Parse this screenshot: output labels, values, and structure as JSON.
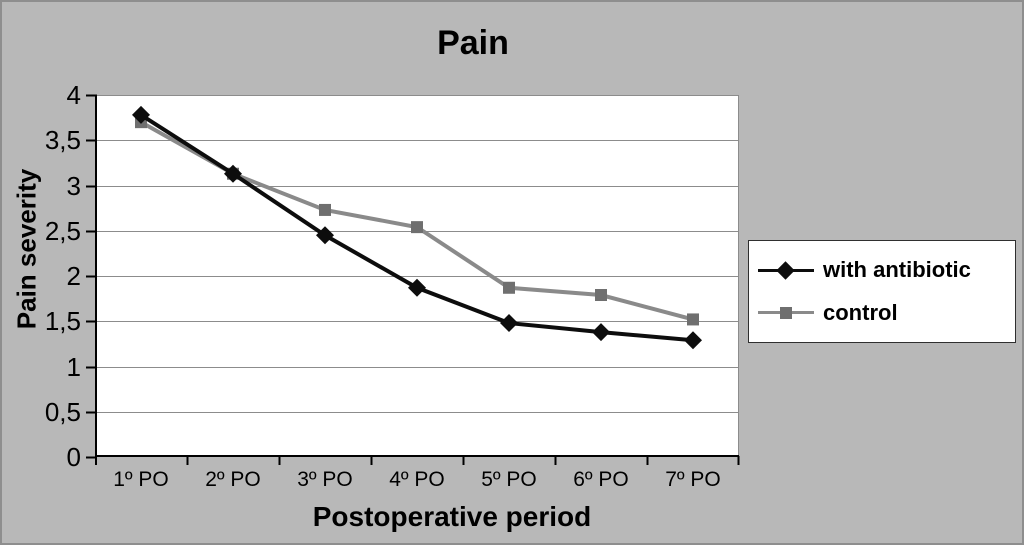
{
  "colors": {
    "background": "#b8b8b8",
    "outer_border": "#8e8e8e",
    "plot_background": "#ffffff",
    "gridline": "#8c8c8c",
    "axis": "#000000"
  },
  "chart_data": {
    "type": "line",
    "title": "Pain",
    "xlabel": "Postoperative period",
    "ylabel": "Pain severity",
    "categories": [
      "1º PO",
      "2º PO",
      "3º PO",
      "4º PO",
      "5º PO",
      "6º PO",
      "7º PO"
    ],
    "series": [
      {
        "name": "with antibiotic",
        "values": [
          3.78,
          3.13,
          2.45,
          1.87,
          1.48,
          1.38,
          1.29
        ],
        "color": "#0d0d0d",
        "marker": "diamond",
        "marker_color": "#0d0d0d"
      },
      {
        "name": "control",
        "values": [
          3.7,
          3.13,
          2.73,
          2.54,
          1.87,
          1.79,
          1.52
        ],
        "color": "#8a8a8a",
        "marker": "square",
        "marker_color": "#6f6f6f"
      }
    ],
    "ylim": [
      0,
      4
    ],
    "ytick_step": 0.5,
    "ytick_labels": [
      "4",
      "3,5",
      "3",
      "2,5",
      "2",
      "1,5",
      "1",
      "0,5",
      "0"
    ],
    "grid": true,
    "legend_position": "right"
  }
}
